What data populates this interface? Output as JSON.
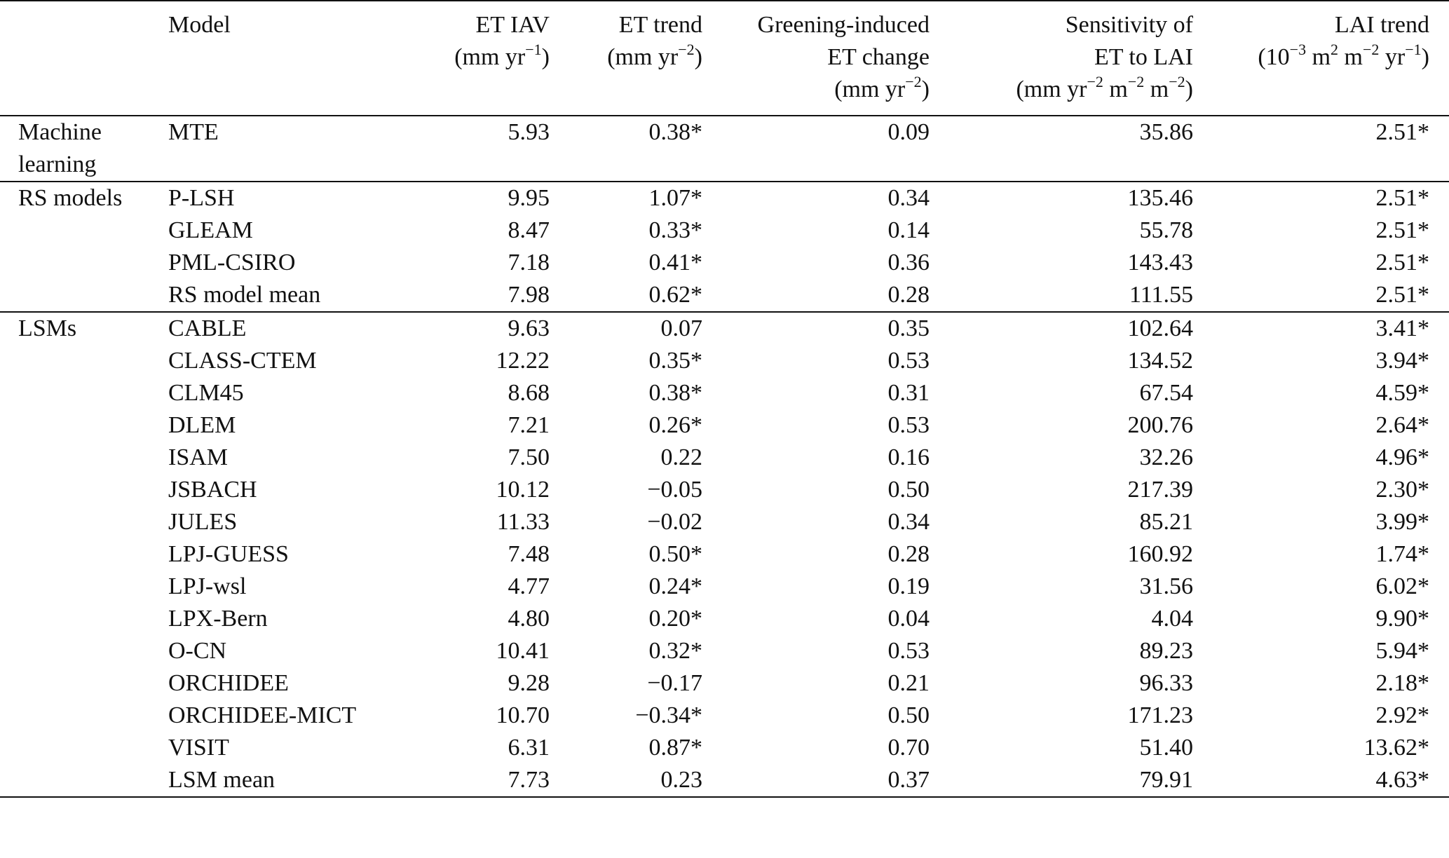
{
  "header": {
    "model": "Model",
    "et_iav": {
      "line1": "ET IAV",
      "line2_pre": "(mm yr",
      "line2_sup": "−1",
      "line2_post": ")"
    },
    "et_trend": {
      "line1": "ET trend",
      "line2_pre": "(mm yr",
      "line2_sup": "−2",
      "line2_post": ")"
    },
    "greening": {
      "line1": "Greening-induced",
      "line2": "ET change",
      "line3_pre": "(mm yr",
      "line3_sup": "−2",
      "line3_post": ")"
    },
    "sensitivity": {
      "line1": "Sensitivity of",
      "line2": "ET to LAI",
      "line3_a": "(mm yr",
      "line3_sup1": "−2",
      "line3_b": " m",
      "line3_sup2": "−2",
      "line3_c": " m",
      "line3_sup3": "−2",
      "line3_d": ")"
    },
    "lai_trend": {
      "line1": "LAI trend",
      "line2_a": "(10",
      "line2_sup1": "−3",
      "line2_b": " m",
      "line2_sup2": "2",
      "line2_c": " m",
      "line2_sup3": "−2",
      "line2_d": " yr",
      "line2_sup4": "−1",
      "line2_e": ")"
    }
  },
  "groups": [
    {
      "label_line1": "Machine",
      "label_line2": "learning",
      "rows": [
        {
          "model": "MTE",
          "et_iav": "5.93",
          "et_trend": "0.38*",
          "greening": "0.09",
          "sensitivity": "35.86",
          "lai_trend": "2.51*"
        }
      ]
    },
    {
      "label_line1": "RS models",
      "label_line2": "",
      "rows": [
        {
          "model": "P-LSH",
          "et_iav": "9.95",
          "et_trend": "1.07*",
          "greening": "0.34",
          "sensitivity": "135.46",
          "lai_trend": "2.51*"
        },
        {
          "model": "GLEAM",
          "et_iav": "8.47",
          "et_trend": "0.33*",
          "greening": "0.14",
          "sensitivity": "55.78",
          "lai_trend": "2.51*"
        },
        {
          "model": "PML-CSIRO",
          "et_iav": "7.18",
          "et_trend": "0.41*",
          "greening": "0.36",
          "sensitivity": "143.43",
          "lai_trend": "2.51*"
        },
        {
          "model": "RS model mean",
          "et_iav": "7.98",
          "et_trend": "0.62*",
          "greening": "0.28",
          "sensitivity": "111.55",
          "lai_trend": "2.51*"
        }
      ]
    },
    {
      "label_line1": "LSMs",
      "label_line2": "",
      "rows": [
        {
          "model": "CABLE",
          "et_iav": "9.63",
          "et_trend": "0.07",
          "greening": "0.35",
          "sensitivity": "102.64",
          "lai_trend": "3.41*"
        },
        {
          "model": "CLASS-CTEM",
          "et_iav": "12.22",
          "et_trend": "0.35*",
          "greening": "0.53",
          "sensitivity": "134.52",
          "lai_trend": "3.94*"
        },
        {
          "model": "CLM45",
          "et_iav": "8.68",
          "et_trend": "0.38*",
          "greening": "0.31",
          "sensitivity": "67.54",
          "lai_trend": "4.59*"
        },
        {
          "model": "DLEM",
          "et_iav": "7.21",
          "et_trend": "0.26*",
          "greening": "0.53",
          "sensitivity": "200.76",
          "lai_trend": "2.64*"
        },
        {
          "model": "ISAM",
          "et_iav": "7.50",
          "et_trend": "0.22",
          "greening": "0.16",
          "sensitivity": "32.26",
          "lai_trend": "4.96*"
        },
        {
          "model": "JSBACH",
          "et_iav": "10.12",
          "et_trend": "−0.05",
          "greening": "0.50",
          "sensitivity": "217.39",
          "lai_trend": "2.30*"
        },
        {
          "model": "JULES",
          "et_iav": "11.33",
          "et_trend": "−0.02",
          "greening": "0.34",
          "sensitivity": "85.21",
          "lai_trend": "3.99*"
        },
        {
          "model": "LPJ-GUESS",
          "et_iav": "7.48",
          "et_trend": "0.50*",
          "greening": "0.28",
          "sensitivity": "160.92",
          "lai_trend": "1.74*"
        },
        {
          "model": "LPJ-wsl",
          "et_iav": "4.77",
          "et_trend": "0.24*",
          "greening": "0.19",
          "sensitivity": "31.56",
          "lai_trend": "6.02*"
        },
        {
          "model": "LPX-Bern",
          "et_iav": "4.80",
          "et_trend": "0.20*",
          "greening": "0.04",
          "sensitivity": "4.04",
          "lai_trend": "9.90*"
        },
        {
          "model": "O-CN",
          "et_iav": "10.41",
          "et_trend": "0.32*",
          "greening": "0.53",
          "sensitivity": "89.23",
          "lai_trend": "5.94*"
        },
        {
          "model": "ORCHIDEE",
          "et_iav": "9.28",
          "et_trend": "−0.17",
          "greening": "0.21",
          "sensitivity": "96.33",
          "lai_trend": "2.18*"
        },
        {
          "model": "ORCHIDEE-MICT",
          "et_iav": "10.70",
          "et_trend": "−0.34*",
          "greening": "0.50",
          "sensitivity": "171.23",
          "lai_trend": "2.92*"
        },
        {
          "model": "VISIT",
          "et_iav": "6.31",
          "et_trend": "0.87*",
          "greening": "0.70",
          "sensitivity": "51.40",
          "lai_trend": "13.62*"
        },
        {
          "model": "LSM mean",
          "et_iav": "7.73",
          "et_trend": "0.23",
          "greening": "0.37",
          "sensitivity": "79.91",
          "lai_trend": "4.63*"
        }
      ]
    }
  ]
}
